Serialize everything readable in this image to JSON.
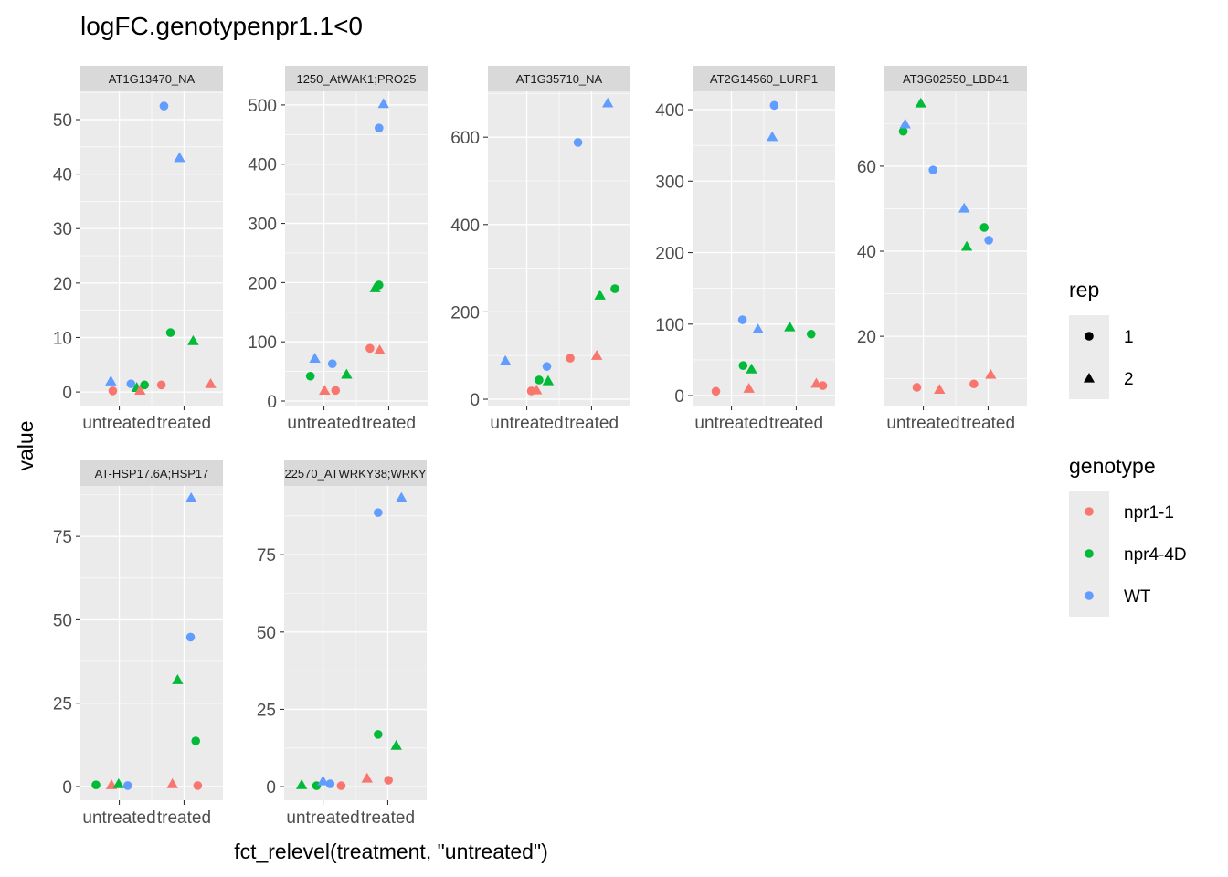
{
  "chart_data": {
    "type": "scatter",
    "title": "logFC.genotypenpr1.1<0",
    "xlabel": "fct_relevel(treatment, \"untreated\")",
    "ylabel": "value",
    "categories": [
      "untreated",
      "treated"
    ],
    "colors": {
      "npr1-1": "#F8766D",
      "npr4-4D": "#00BA38",
      "WT": "#619CFF"
    },
    "legend": {
      "placement": "right",
      "rep": {
        "title": "rep",
        "items": [
          "1",
          "2"
        ]
      },
      "genotype": {
        "title": "genotype",
        "items": [
          "npr1-1",
          "npr4-4D",
          "WT"
        ]
      }
    },
    "panels": [
      {
        "label": "AT1G13470_NA",
        "ylim": [
          -2.5,
          55.2
        ],
        "ticks": [
          0,
          10,
          20,
          30,
          40,
          50
        ],
        "points": [
          {
            "x": 0.9,
            "y": 0.2,
            "g": "npr1-1",
            "rep": 1
          },
          {
            "x": 0.87,
            "y": 2,
            "g": "WT",
            "rep": 2
          },
          {
            "x": 1.18,
            "y": 1.5,
            "g": "WT",
            "rep": 1
          },
          {
            "x": 1.27,
            "y": 0.8,
            "g": "npr4-4D",
            "rep": 2
          },
          {
            "x": 1.32,
            "y": 0.3,
            "g": "npr1-1",
            "rep": 2
          },
          {
            "x": 1.39,
            "y": 1.3,
            "g": "npr4-4D",
            "rep": 1
          },
          {
            "x": 1.65,
            "y": 1.3,
            "g": "npr1-1",
            "rep": 1
          },
          {
            "x": 1.69,
            "y": 52.5,
            "g": "WT",
            "rep": 1
          },
          {
            "x": 1.93,
            "y": 43,
            "g": "WT",
            "rep": 2
          },
          {
            "x": 1.79,
            "y": 10.9,
            "g": "npr4-4D",
            "rep": 1
          },
          {
            "x": 2.14,
            "y": 9.4,
            "g": "npr4-4D",
            "rep": 2
          },
          {
            "x": 2.41,
            "y": 1.5,
            "g": "npr1-1",
            "rep": 2
          }
        ]
      },
      {
        "label": "1250_AtWAK1;PRO25",
        "ylim": [
          -7.7,
          523
        ],
        "ticks": [
          0,
          100,
          200,
          300,
          400,
          500
        ],
        "points": [
          {
            "x": 0.79,
            "y": 42,
            "g": "npr4-4D",
            "rep": 1
          },
          {
            "x": 0.86,
            "y": 72,
            "g": "WT",
            "rep": 2
          },
          {
            "x": 1.13,
            "y": 63,
            "g": "WT",
            "rep": 1
          },
          {
            "x": 1.01,
            "y": 18,
            "g": "npr1-1",
            "rep": 2
          },
          {
            "x": 1.18,
            "y": 18,
            "g": "npr1-1",
            "rep": 1
          },
          {
            "x": 1.35,
            "y": 45,
            "g": "npr4-4D",
            "rep": 2
          },
          {
            "x": 1.71,
            "y": 89,
            "g": "npr1-1",
            "rep": 1
          },
          {
            "x": 1.86,
            "y": 86,
            "g": "npr1-1",
            "rep": 2
          },
          {
            "x": 1.79,
            "y": 191,
            "g": "npr4-4D",
            "rep": 2
          },
          {
            "x": 1.85,
            "y": 196,
            "g": "npr4-4D",
            "rep": 1
          },
          {
            "x": 1.85,
            "y": 461,
            "g": "WT",
            "rep": 1
          },
          {
            "x": 1.92,
            "y": 502,
            "g": "WT",
            "rep": 2
          }
        ]
      },
      {
        "label": "AT1G35710_NA",
        "ylim": [
          -14.6,
          705
        ],
        "ticks": [
          0,
          200,
          400,
          600
        ],
        "points": [
          {
            "x": 0.67,
            "y": 88,
            "g": "WT",
            "rep": 2
          },
          {
            "x": 1.07,
            "y": 19,
            "g": "npr1-1",
            "rep": 1
          },
          {
            "x": 1.15,
            "y": 21,
            "g": "npr1-1",
            "rep": 2
          },
          {
            "x": 1.19,
            "y": 44,
            "g": "npr4-4D",
            "rep": 1
          },
          {
            "x": 1.33,
            "y": 42,
            "g": "npr4-4D",
            "rep": 2
          },
          {
            "x": 1.31,
            "y": 75,
            "g": "WT",
            "rep": 1
          },
          {
            "x": 1.67,
            "y": 94,
            "g": "npr1-1",
            "rep": 1
          },
          {
            "x": 1.79,
            "y": 588,
            "g": "WT",
            "rep": 1
          },
          {
            "x": 2.08,
            "y": 100,
            "g": "npr1-1",
            "rep": 2
          },
          {
            "x": 2.13,
            "y": 238,
            "g": "npr4-4D",
            "rep": 2
          },
          {
            "x": 2.36,
            "y": 253,
            "g": "npr4-4D",
            "rep": 1
          },
          {
            "x": 2.25,
            "y": 678,
            "g": "WT",
            "rep": 2
          }
        ]
      },
      {
        "label": "AT2G14560_LURP1",
        "ylim": [
          -14,
          425.6
        ],
        "ticks": [
          0,
          100,
          200,
          300,
          400
        ],
        "points": [
          {
            "x": 0.76,
            "y": 6,
            "g": "npr1-1",
            "rep": 1
          },
          {
            "x": 1.17,
            "y": 106,
            "g": "WT",
            "rep": 1
          },
          {
            "x": 1.18,
            "y": 42,
            "g": "npr4-4D",
            "rep": 1
          },
          {
            "x": 1.27,
            "y": 10,
            "g": "npr1-1",
            "rep": 2
          },
          {
            "x": 1.31,
            "y": 37,
            "g": "npr4-4D",
            "rep": 2
          },
          {
            "x": 1.41,
            "y": 93,
            "g": "WT",
            "rep": 2
          },
          {
            "x": 1.66,
            "y": 406,
            "g": "WT",
            "rep": 1
          },
          {
            "x": 1.63,
            "y": 362,
            "g": "WT",
            "rep": 2
          },
          {
            "x": 1.9,
            "y": 96,
            "g": "npr4-4D",
            "rep": 2
          },
          {
            "x": 2.23,
            "y": 86,
            "g": "npr4-4D",
            "rep": 1
          },
          {
            "x": 2.31,
            "y": 17,
            "g": "npr1-1",
            "rep": 2
          },
          {
            "x": 2.41,
            "y": 14,
            "g": "npr1-1",
            "rep": 1
          }
        ]
      },
      {
        "label": "AT3G02550_LBD41",
        "ylim": [
          3.7,
          77.6
        ],
        "ticks": [
          20,
          40,
          60
        ],
        "points": [
          {
            "x": 0.69,
            "y": 68.2,
            "g": "npr4-4D",
            "rep": 1
          },
          {
            "x": 0.72,
            "y": 69.9,
            "g": "WT",
            "rep": 2
          },
          {
            "x": 0.96,
            "y": 74.8,
            "g": "npr4-4D",
            "rep": 2
          },
          {
            "x": 1.15,
            "y": 59.1,
            "g": "WT",
            "rep": 1
          },
          {
            "x": 0.9,
            "y": 8.0,
            "g": "npr1-1",
            "rep": 1
          },
          {
            "x": 1.25,
            "y": 7.5,
            "g": "npr1-1",
            "rep": 2
          },
          {
            "x": 1.63,
            "y": 50.1,
            "g": "WT",
            "rep": 2
          },
          {
            "x": 1.67,
            "y": 41.1,
            "g": "npr4-4D",
            "rep": 2
          },
          {
            "x": 1.78,
            "y": 8.8,
            "g": "npr1-1",
            "rep": 1
          },
          {
            "x": 1.94,
            "y": 45.6,
            "g": "npr4-4D",
            "rep": 1
          },
          {
            "x": 2.01,
            "y": 42.6,
            "g": "WT",
            "rep": 1
          },
          {
            "x": 2.04,
            "y": 11.0,
            "g": "npr1-1",
            "rep": 2
          }
        ]
      },
      {
        "label": "AT-HSP17.6A;HSP17",
        "ylim": [
          -4.1,
          90.1
        ],
        "ticks": [
          0,
          25,
          50,
          75
        ],
        "points": [
          {
            "x": 0.64,
            "y": 0.5,
            "g": "npr4-4D",
            "rep": 1
          },
          {
            "x": 0.88,
            "y": 0.5,
            "g": "npr1-1",
            "rep": 2
          },
          {
            "x": 0.99,
            "y": 0.8,
            "g": "npr4-4D",
            "rep": 2
          },
          {
            "x": 1.13,
            "y": 0.3,
            "g": "WT",
            "rep": 1
          },
          {
            "x": 1.82,
            "y": 0.8,
            "g": "npr1-1",
            "rep": 2
          },
          {
            "x": 1.9,
            "y": 32,
            "g": "npr4-4D",
            "rep": 2
          },
          {
            "x": 2.1,
            "y": 44.8,
            "g": "WT",
            "rep": 1
          },
          {
            "x": 2.11,
            "y": 86.5,
            "g": "WT",
            "rep": 2
          },
          {
            "x": 2.18,
            "y": 13.7,
            "g": "npr4-4D",
            "rep": 1
          },
          {
            "x": 2.21,
            "y": 0.3,
            "g": "npr1-1",
            "rep": 1
          }
        ]
      },
      {
        "label": "22570_ATWRKY38;WRKY",
        "ylim": [
          -4.4,
          97.2
        ],
        "ticks": [
          0,
          25,
          50,
          75
        ],
        "points": [
          {
            "x": 0.67,
            "y": 0.6,
            "g": "npr4-4D",
            "rep": 2
          },
          {
            "x": 0.9,
            "y": 0.3,
            "g": "npr4-4D",
            "rep": 1
          },
          {
            "x": 1.0,
            "y": 1.8,
            "g": "WT",
            "rep": 2
          },
          {
            "x": 1.11,
            "y": 0.9,
            "g": "WT",
            "rep": 1
          },
          {
            "x": 1.28,
            "y": 0.3,
            "g": "npr1-1",
            "rep": 1
          },
          {
            "x": 1.68,
            "y": 2.7,
            "g": "npr1-1",
            "rep": 2
          },
          {
            "x": 1.85,
            "y": 88.6,
            "g": "WT",
            "rep": 1
          },
          {
            "x": 1.85,
            "y": 16.9,
            "g": "npr4-4D",
            "rep": 1
          },
          {
            "x": 2.01,
            "y": 2.1,
            "g": "npr1-1",
            "rep": 1
          },
          {
            "x": 2.13,
            "y": 13.3,
            "g": "npr4-4D",
            "rep": 2
          },
          {
            "x": 2.21,
            "y": 93.4,
            "g": "WT",
            "rep": 2
          }
        ]
      }
    ]
  }
}
